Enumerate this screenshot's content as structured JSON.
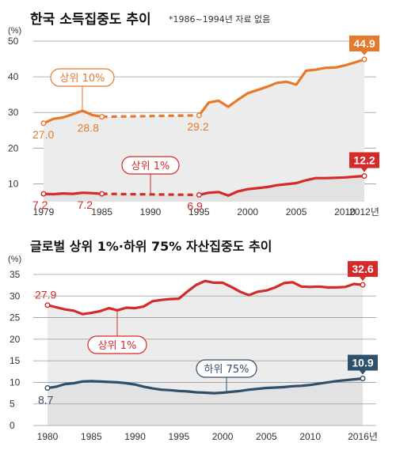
{
  "chart_data": [
    {
      "type": "line",
      "title": "한국 소득집중도 추이",
      "note": "*1986~1994년 자료 없음",
      "ylabel": "(%)",
      "ylim": [
        5,
        50
      ],
      "yticks": [
        "10",
        "20",
        "30",
        "40",
        "50"
      ],
      "xticks": [
        "1979",
        "1985",
        "1990",
        "1995",
        "2000",
        "2005",
        "2010",
        "2012년"
      ],
      "xlim": [
        1979,
        2012
      ],
      "missing_years": [
        1986,
        1994
      ],
      "series": [
        {
          "name": "상위 10%",
          "color": "#e8782a",
          "x": [
            1979,
            1980,
            1981,
            1982,
            1983,
            1984,
            1985,
            1995,
            1996,
            1997,
            1998,
            1999,
            2000,
            2001,
            2002,
            2003,
            2004,
            2005,
            2006,
            2007,
            2008,
            2009,
            2010,
            2011,
            2012
          ],
          "y": [
            27.0,
            28.2,
            28.6,
            29.5,
            30.5,
            29.3,
            28.8,
            29.2,
            32.8,
            33.3,
            31.6,
            33.6,
            35.4,
            36.3,
            37.2,
            38.3,
            38.6,
            37.8,
            41.7,
            42.0,
            42.5,
            42.6,
            43.2,
            44.0,
            44.9
          ],
          "start_label": "27.0",
          "gap_start_label": "28.8",
          "gap_end_label": "29.2",
          "end_label": "44.9"
        },
        {
          "name": "상위 1%",
          "color": "#d42a2a",
          "x": [
            1979,
            1980,
            1981,
            1982,
            1983,
            1984,
            1985,
            1995,
            1996,
            1997,
            1998,
            1999,
            2000,
            2001,
            2002,
            2003,
            2004,
            2005,
            2006,
            2007,
            2008,
            2009,
            2010,
            2011,
            2012
          ],
          "y": [
            7.2,
            7.1,
            7.3,
            7.2,
            7.5,
            7.4,
            7.2,
            6.9,
            7.5,
            7.7,
            6.7,
            7.9,
            8.5,
            8.8,
            9.1,
            9.6,
            9.9,
            10.2,
            11.0,
            11.6,
            11.6,
            11.7,
            11.8,
            12.0,
            12.2
          ],
          "start_label": "7.2",
          "gap_start_label": "7.2",
          "gap_end_label": "6.9",
          "end_label": "12.2"
        }
      ]
    },
    {
      "type": "line",
      "title": "글로벌 상위 1%·하위 75% 자산집중도 추이",
      "ylabel": "(%)",
      "ylim": [
        0,
        35
      ],
      "yticks": [
        "0",
        "5",
        "10",
        "15",
        "20",
        "25",
        "30",
        "35"
      ],
      "xticks": [
        "1980",
        "1985",
        "1990",
        "1995",
        "2000",
        "2005",
        "2010",
        "2016년"
      ],
      "xlim": [
        1980,
        2016
      ],
      "series": [
        {
          "name": "상위 1%",
          "color": "#d42a2a",
          "x": [
            1980,
            1981,
            1982,
            1983,
            1984,
            1985,
            1986,
            1987,
            1988,
            1989,
            1990,
            1991,
            1992,
            1993,
            1994,
            1995,
            1996,
            1997,
            1998,
            1999,
            2000,
            2001,
            2002,
            2003,
            2004,
            2005,
            2006,
            2007,
            2008,
            2009,
            2010,
            2011,
            2012,
            2013,
            2014,
            2015,
            2016
          ],
          "y": [
            27.9,
            27.4,
            26.9,
            26.6,
            25.8,
            26.1,
            26.5,
            27.2,
            26.7,
            27.3,
            27.2,
            27.6,
            28.8,
            29.1,
            29.3,
            29.4,
            31.1,
            32.6,
            33.5,
            33.1,
            33.1,
            32.1,
            31.0,
            30.2,
            31.0,
            31.3,
            32.0,
            33.0,
            33.2,
            32.2,
            32.1,
            32.2,
            32.0,
            32.0,
            32.1,
            32.8,
            32.6
          ],
          "start_label": "27.9",
          "end_label": "32.6"
        },
        {
          "name": "하위 75%",
          "color": "#2f4f6b",
          "x": [
            1980,
            1981,
            1982,
            1983,
            1984,
            1985,
            1986,
            1987,
            1988,
            1989,
            1990,
            1991,
            1992,
            1993,
            1994,
            1995,
            1996,
            1997,
            1998,
            1999,
            2000,
            2001,
            2002,
            2003,
            2004,
            2005,
            2006,
            2007,
            2008,
            2009,
            2010,
            2011,
            2012,
            2013,
            2014,
            2015,
            2016
          ],
          "y": [
            8.7,
            9.0,
            9.6,
            9.8,
            10.2,
            10.3,
            10.2,
            10.1,
            10.0,
            9.8,
            9.5,
            9.0,
            8.6,
            8.3,
            8.2,
            8.0,
            7.9,
            7.7,
            7.6,
            7.5,
            7.6,
            7.8,
            8.0,
            8.3,
            8.5,
            8.7,
            8.8,
            8.9,
            9.1,
            9.2,
            9.4,
            9.7,
            10.0,
            10.3,
            10.5,
            10.7,
            10.9
          ],
          "start_label": "8.7",
          "end_label": "10.9"
        }
      ]
    }
  ]
}
